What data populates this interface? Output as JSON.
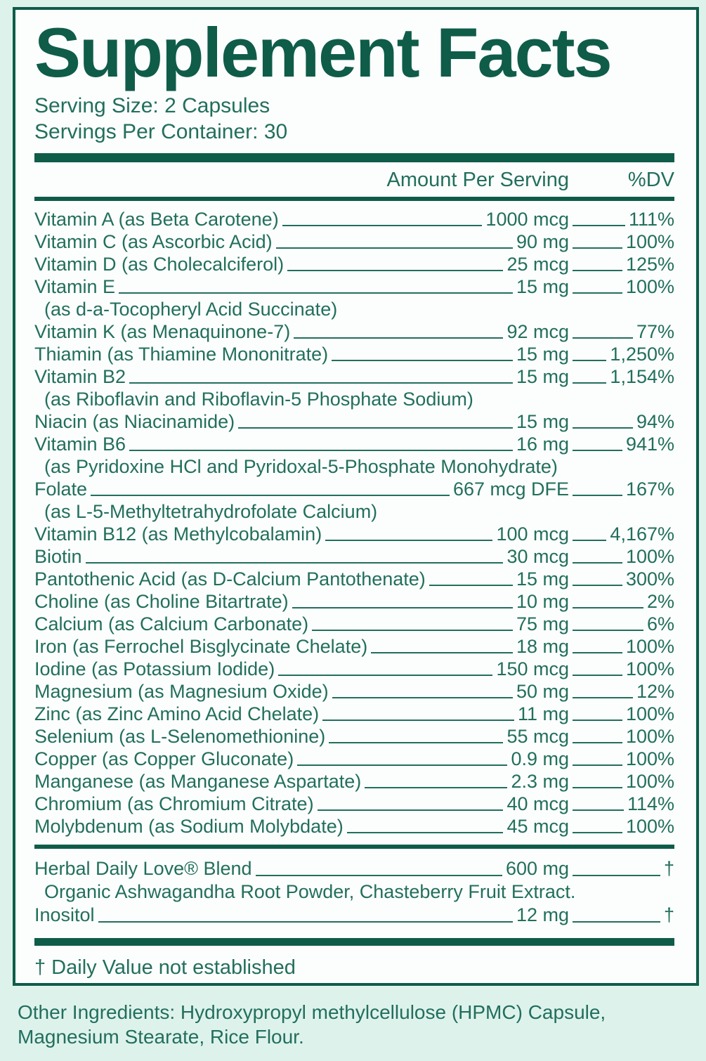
{
  "panel": {
    "title": "Supplement Facts",
    "serving_size": "Serving Size: 2 Capsules",
    "servings_per_container": "Servings Per Container: 30",
    "column_headers": {
      "amount": "Amount Per Serving",
      "dv": "%DV"
    }
  },
  "facts": {
    "rows": [
      {
        "name": "Vitamin A (as Beta Carotene)",
        "amount": "1000 mcg",
        "dv": "111%"
      },
      {
        "name": "Vitamin C (as Ascorbic Acid)",
        "amount": "90 mg",
        "dv": "100%"
      },
      {
        "name": "Vitamin D (as Cholecalciferol)",
        "amount": "25 mcg",
        "dv": "125%"
      },
      {
        "name": "Vitamin E",
        "amount": "15 mg",
        "dv": "100%",
        "sub": "(as d-a-Tocopheryl Acid Succinate)"
      },
      {
        "name": "Vitamin K (as Menaquinone-7)",
        "amount": "92 mcg",
        "dv": "77%"
      },
      {
        "name": "Thiamin (as Thiamine Mononitrate)",
        "amount": "15 mg",
        "dv": "1,250%"
      },
      {
        "name": "Vitamin B2",
        "amount": "15 mg",
        "dv": "1,154%",
        "sub": "(as Riboflavin and Riboflavin-5 Phosphate Sodium)"
      },
      {
        "name": "Niacin (as Niacinamide)",
        "amount": "15 mg",
        "dv": "94%"
      },
      {
        "name": "Vitamin B6",
        "amount": "16 mg",
        "dv": "941%",
        "sub": "(as Pyridoxine HCl and Pyridoxal-5-Phosphate Monohydrate)"
      },
      {
        "name": "Folate",
        "amount": "667 mcg DFE",
        "dv": "167%",
        "sub": "(as L-5-Methyltetrahydrofolate Calcium)"
      },
      {
        "name": "Vitamin B12 (as Methylcobalamin)",
        "amount": "100 mcg",
        "dv": "4,167%"
      },
      {
        "name": "Biotin",
        "amount": "30 mcg",
        "dv": "100%"
      },
      {
        "name": "Pantothenic Acid (as D-Calcium Pantothenate)",
        "amount": "15 mg",
        "dv": "300%"
      },
      {
        "name": "Choline (as Choline Bitartrate)",
        "amount": "10 mg",
        "dv": "2%"
      },
      {
        "name": "Calcium (as Calcium Carbonate)",
        "amount": "75 mg",
        "dv": "6%"
      },
      {
        "name": "Iron (as Ferrochel Bisglycinate Chelate)",
        "amount": "18 mg",
        "dv": "100%"
      },
      {
        "name": "Iodine (as Potassium Iodide)",
        "amount": "150 mcg",
        "dv": "100%"
      },
      {
        "name": "Magnesium (as Magnesium Oxide)",
        "amount": "50 mg",
        "dv": "12%"
      },
      {
        "name": "Zinc (as Zinc Amino Acid Chelate)",
        "amount": "11 mg",
        "dv": "100%"
      },
      {
        "name": "Selenium (as L-Selenomethionine)",
        "amount": "55 mcg",
        "dv": "100%"
      },
      {
        "name": "Copper (as Copper Gluconate)",
        "amount": "0.9 mg",
        "dv": "100%"
      },
      {
        "name": "Manganese (as Manganese Aspartate)",
        "amount": "2.3 mg",
        "dv": "100%"
      },
      {
        "name": "Chromium (as Chromium Citrate)",
        "amount": "40 mcg",
        "dv": "114%"
      },
      {
        "name": "Molybdenum (as Sodium Molybdate)",
        "amount": "45 mcg",
        "dv": "100%"
      }
    ]
  },
  "blend": {
    "rows": [
      {
        "name": "Herbal Daily Love® Blend",
        "amount": "600 mg",
        "dv": "†",
        "sub": "Organic Ashwagandha Root Powder, Chasteberry Fruit Extract."
      },
      {
        "name": "Inositol",
        "amount": "12 mg",
        "dv": "†"
      }
    ]
  },
  "footnote": "† Daily Value not established",
  "other_ingredients": "Other Ingredients: Hydroxypropyl methylcellulose (HPMC) Capsule, Magnesium Stearate, Rice Flour.",
  "colors": {
    "green_dark": "#0f5c49",
    "green_text": "#226f5c",
    "bg_outer": "#def2ec",
    "bg_inner": "#fcfefd"
  }
}
